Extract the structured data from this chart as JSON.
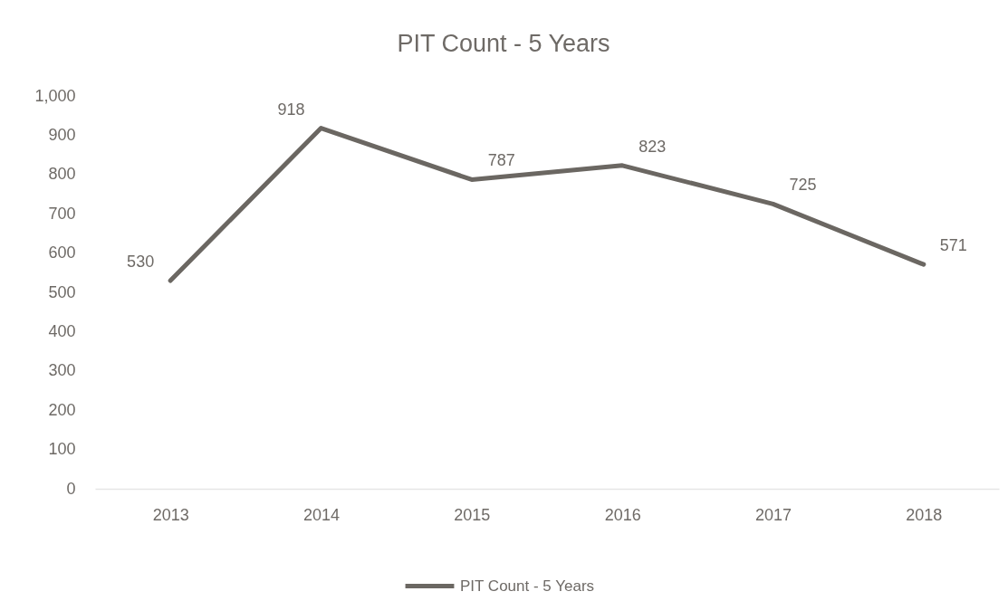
{
  "chart_data": {
    "type": "line",
    "title": "PIT Count - 5 Years",
    "categories": [
      "2013",
      "2014",
      "2015",
      "2016",
      "2017",
      "2018"
    ],
    "series": [
      {
        "name": "PIT Count - 5 Years",
        "color": "#6b6762",
        "values": [
          530,
          918,
          787,
          823,
          725,
          571
        ]
      }
    ],
    "ylim": [
      0,
      1000
    ],
    "yticks": [
      0,
      100,
      200,
      300,
      400,
      500,
      600,
      700,
      800,
      900,
      {
        "value": 1000,
        "label": "1,000"
      }
    ],
    "grid": false,
    "legend": "bottom",
    "data_labels": true
  }
}
